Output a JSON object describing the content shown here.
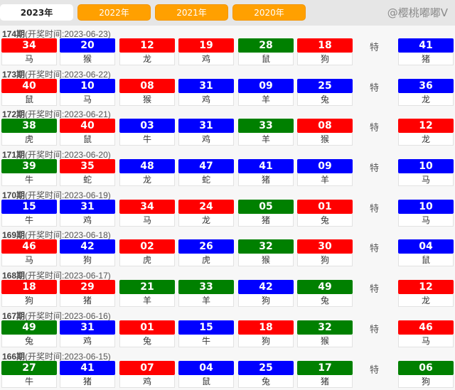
{
  "colors": {
    "red": "#ff0000",
    "blue": "#0000ff",
    "green": "#008000",
    "tab": "#ffa000"
  },
  "tabs": [
    {
      "label": "2023年",
      "active": true
    },
    {
      "label": "2022年"
    },
    {
      "label": "2021年"
    },
    {
      "label": "2020年"
    }
  ],
  "special_label": "特",
  "watermark": "@樱桃嘟嘟V",
  "draws": [
    {
      "issue": "174期",
      "date": "(开奖时间:2023-06-23)",
      "balls": [
        [
          "34",
          "red",
          "马"
        ],
        [
          "20",
          "blue",
          "猴"
        ],
        [
          "12",
          "red",
          "龙"
        ],
        [
          "19",
          "red",
          "鸡"
        ],
        [
          "28",
          "green",
          "鼠"
        ],
        [
          "18",
          "red",
          "狗"
        ]
      ],
      "special": [
        "41",
        "blue",
        "猪"
      ]
    },
    {
      "issue": "173期",
      "date": "(开奖时间:2023-06-22)",
      "balls": [
        [
          "40",
          "red",
          "鼠"
        ],
        [
          "10",
          "blue",
          "马"
        ],
        [
          "08",
          "red",
          "猴"
        ],
        [
          "31",
          "blue",
          "鸡"
        ],
        [
          "09",
          "blue",
          "羊"
        ],
        [
          "25",
          "blue",
          "兔"
        ]
      ],
      "special": [
        "36",
        "blue",
        "龙"
      ]
    },
    {
      "issue": "172期",
      "date": "(开奖时间:2023-06-21)",
      "balls": [
        [
          "38",
          "green",
          "虎"
        ],
        [
          "40",
          "red",
          "鼠"
        ],
        [
          "03",
          "blue",
          "牛"
        ],
        [
          "31",
          "blue",
          "鸡"
        ],
        [
          "33",
          "green",
          "羊"
        ],
        [
          "08",
          "red",
          "猴"
        ]
      ],
      "special": [
        "12",
        "red",
        "龙"
      ]
    },
    {
      "issue": "171期",
      "date": "(开奖时间:2023-06-20)",
      "balls": [
        [
          "39",
          "green",
          "牛"
        ],
        [
          "35",
          "red",
          "蛇"
        ],
        [
          "48",
          "blue",
          "龙"
        ],
        [
          "47",
          "blue",
          "蛇"
        ],
        [
          "41",
          "blue",
          "猪"
        ],
        [
          "09",
          "blue",
          "羊"
        ]
      ],
      "special": [
        "10",
        "blue",
        "马"
      ]
    },
    {
      "issue": "170期",
      "date": "(开奖时间:2023-06-19)",
      "balls": [
        [
          "15",
          "blue",
          "牛"
        ],
        [
          "31",
          "blue",
          "鸡"
        ],
        [
          "34",
          "red",
          "马"
        ],
        [
          "24",
          "red",
          "龙"
        ],
        [
          "05",
          "green",
          "猪"
        ],
        [
          "01",
          "red",
          "兔"
        ]
      ],
      "special": [
        "10",
        "blue",
        "马"
      ]
    },
    {
      "issue": "169期",
      "date": "(开奖时间:2023-06-18)",
      "balls": [
        [
          "46",
          "red",
          "马"
        ],
        [
          "42",
          "blue",
          "狗"
        ],
        [
          "02",
          "red",
          "虎"
        ],
        [
          "26",
          "blue",
          "虎"
        ],
        [
          "32",
          "green",
          "猴"
        ],
        [
          "30",
          "red",
          "狗"
        ]
      ],
      "special": [
        "04",
        "blue",
        "鼠"
      ]
    },
    {
      "issue": "168期",
      "date": "(开奖时间:2023-06-17)",
      "balls": [
        [
          "18",
          "red",
          "狗"
        ],
        [
          "29",
          "red",
          "猪"
        ],
        [
          "21",
          "green",
          "羊"
        ],
        [
          "33",
          "green",
          "羊"
        ],
        [
          "42",
          "blue",
          "狗"
        ],
        [
          "49",
          "green",
          "兔"
        ]
      ],
      "special": [
        "12",
        "red",
        "龙"
      ]
    },
    {
      "issue": "167期",
      "date": "(开奖时间:2023-06-16)",
      "balls": [
        [
          "49",
          "green",
          "兔"
        ],
        [
          "31",
          "blue",
          "鸡"
        ],
        [
          "01",
          "red",
          "兔"
        ],
        [
          "15",
          "blue",
          "牛"
        ],
        [
          "18",
          "red",
          "狗"
        ],
        [
          "32",
          "green",
          "猴"
        ]
      ],
      "special": [
        "46",
        "red",
        "马"
      ]
    },
    {
      "issue": "166期",
      "date": "(开奖时间:2023-06-15)",
      "balls": [
        [
          "27",
          "green",
          "牛"
        ],
        [
          "41",
          "blue",
          "猪"
        ],
        [
          "07",
          "red",
          "鸡"
        ],
        [
          "04",
          "blue",
          "鼠"
        ],
        [
          "25",
          "blue",
          "兔"
        ],
        [
          "17",
          "green",
          "猪"
        ]
      ],
      "special": [
        "06",
        "green",
        "狗"
      ]
    }
  ]
}
